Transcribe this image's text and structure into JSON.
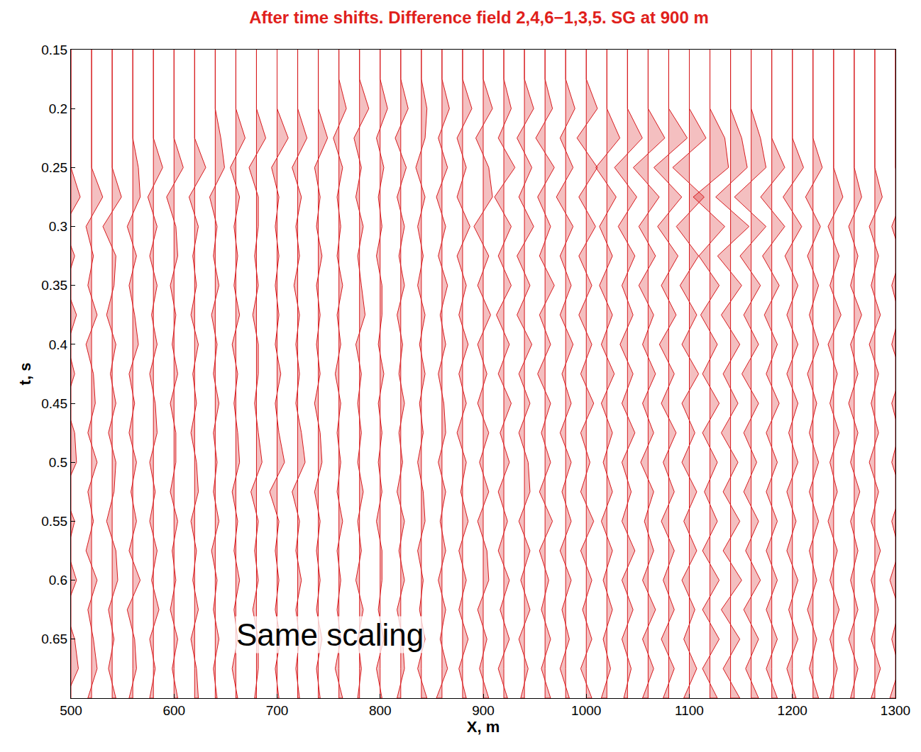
{
  "chart_data": {
    "type": "wiggle",
    "title": "After time shifts. Difference field 2,4,6−1,3,5. SG at 900 m",
    "x_label": "X, m",
    "y_label": "t, s",
    "color": "#d7191c",
    "grid": false,
    "xlim": [
      500,
      1300
    ],
    "xticks": [
      500,
      600,
      700,
      800,
      900,
      1000,
      1100,
      1200,
      1300
    ],
    "ylim": [
      0.7,
      0.15
    ],
    "yticks": [
      0.15,
      0.2,
      0.25,
      0.3,
      0.35,
      0.4,
      0.45,
      0.5,
      0.55,
      0.6,
      0.65
    ],
    "annotations": [
      {
        "text": "Same scaling",
        "x": 751,
        "y": 0.646
      }
    ],
    "t": [
      0.15,
      0.175,
      0.2,
      0.225,
      0.25,
      0.275,
      0.3,
      0.325,
      0.35,
      0.375,
      0.4,
      0.425,
      0.45,
      0.475,
      0.5,
      0.525,
      0.55,
      0.575,
      0.6,
      0.625,
      0.65,
      0.675,
      0.7
    ],
    "x": [
      500,
      520,
      540,
      560,
      580,
      600,
      620,
      640,
      660,
      680,
      700,
      720,
      740,
      760,
      780,
      800,
      820,
      840,
      860,
      880,
      900,
      920,
      940,
      960,
      980,
      1000,
      1020,
      1040,
      1060,
      1080,
      1100,
      1120,
      1140,
      1160,
      1180,
      1200,
      1220,
      1240,
      1260,
      1280,
      1300
    ],
    "traces": [
      [
        0,
        0,
        0,
        0,
        0,
        0.5,
        -0.4,
        0.2,
        -0.3,
        0.3,
        -0.2,
        0.2,
        -0.3,
        0.2,
        0.3,
        -0.4,
        0.2,
        -0.2,
        0.3,
        -0.3,
        0.2,
        0.4,
        -0.3
      ],
      [
        0,
        0,
        0,
        0,
        0,
        0.6,
        -0.3,
        0.1,
        -0.2,
        0.3,
        -0.3,
        0.1,
        0.2,
        -0.2,
        0.3,
        -0.2,
        0.1,
        -0.3,
        0.3,
        -0.2,
        0.1,
        0.3,
        -0.2
      ],
      [
        0,
        0,
        0,
        0,
        0,
        0.5,
        -0.5,
        0.2,
        0.1,
        -0.3,
        0.2,
        -0.1,
        0.2,
        -0.2,
        0.2,
        0.1,
        -0.3,
        0.2,
        0.3,
        -0.2,
        0.1,
        -0.2,
        0.2
      ],
      [
        0,
        0,
        0,
        0,
        0.3,
        0.4,
        -0.3,
        0.2,
        -0.2,
        0.1,
        0.3,
        -0.2,
        0.1,
        -0.2,
        0.2,
        -0.1,
        0.2,
        -0.2,
        0.4,
        -0.3,
        0.1,
        0.2,
        -0.2
      ],
      [
        0,
        0,
        0,
        0,
        0.5,
        -0.3,
        0.2,
        -0.2,
        0.2,
        -0.1,
        0.2,
        -0.2,
        0.1,
        0.2,
        -0.2,
        0.1,
        -0.2,
        0.2,
        -0.1,
        0.3,
        -0.2,
        0.1,
        -0.2
      ],
      [
        0,
        0,
        0,
        0,
        0.5,
        -0.4,
        0.1,
        0.2,
        -0.2,
        0.1,
        -0.1,
        0.2,
        -0.2,
        0.1,
        0.1,
        -0.2,
        0.2,
        -0.1,
        0.1,
        -0.2,
        0.2,
        -0.1,
        0.2
      ],
      [
        0,
        0,
        0,
        0,
        0.6,
        -0.3,
        0.2,
        -0.1,
        0.1,
        -0.2,
        0.2,
        -0.1,
        0.1,
        -0.2,
        0.1,
        0.2,
        -0.2,
        0.1,
        -0.1,
        0.2,
        -0.2,
        0.1,
        0.2
      ],
      [
        0,
        0,
        0,
        0.3,
        0.5,
        -0.3,
        0.1,
        -0.1,
        0.2,
        -0.2,
        0.1,
        -0.1,
        0.2,
        -0.1,
        0.1,
        -0.1,
        0.2,
        -0.2,
        0.1,
        -0.1,
        0.2,
        -0.1,
        0.1
      ],
      [
        0,
        0,
        0,
        0.5,
        -0.3,
        0.2,
        -0.1,
        0.1,
        -0.1,
        0.2,
        -0.2,
        0.1,
        -0.1,
        0.1,
        0.2,
        -0.2,
        0.1,
        -0.1,
        0.2,
        -0.1,
        0.1,
        -0.2,
        0.1
      ],
      [
        0,
        0,
        0,
        0.5,
        -0.4,
        0.1,
        0.1,
        -0.1,
        0.1,
        -0.2,
        0.1,
        0.1,
        -0.1,
        0.1,
        0.3,
        -0.3,
        0.1,
        -0.1,
        0.1,
        -0.2,
        0.1,
        0.1,
        -0.1
      ],
      [
        0,
        0,
        0,
        0.6,
        -0.3,
        0.1,
        -0.1,
        0.1,
        -0.1,
        0.1,
        -0.1,
        0.2,
        -0.1,
        0.1,
        0.4,
        -0.4,
        0.1,
        -0.1,
        0.1,
        -0.1,
        0.2,
        -0.1,
        0.1
      ],
      [
        0,
        0,
        0,
        0.5,
        -0.3,
        0.2,
        -0.1,
        0.1,
        -0.2,
        0.1,
        -0.1,
        0.1,
        -0.1,
        0.2,
        0.4,
        -0.3,
        0.1,
        -0.1,
        0.2,
        -0.1,
        0.1,
        -0.1,
        0.1
      ],
      [
        0,
        0,
        0,
        0.5,
        -0.2,
        0.1,
        -0.1,
        0.2,
        -0.1,
        0.1,
        -0.1,
        0.1,
        -0.2,
        0.1,
        0.2,
        -0.2,
        0.1,
        -0.1,
        0.1,
        -0.1,
        0.2,
        -0.1,
        0.1
      ],
      [
        0,
        0,
        0.4,
        -0.3,
        0.2,
        -0.1,
        0.1,
        -0.1,
        0.2,
        -0.1,
        0.1,
        -0.2,
        0.1,
        -0.1,
        0.1,
        -0.1,
        0.2,
        -0.1,
        0.1,
        -0.1,
        0.1,
        -0.2,
        0.2
      ],
      [
        0,
        0,
        0.5,
        -0.3,
        0.1,
        -0.2,
        0.2,
        -0.1,
        0.1,
        0.3,
        -0.2,
        0.1,
        -0.1,
        0.1,
        -0.1,
        0.2,
        -0.1,
        0.1,
        -0.2,
        0.2,
        -0.1,
        0.1,
        -0.1
      ],
      [
        0,
        0,
        0.4,
        -0.2,
        0.2,
        -0.1,
        0.1,
        -0.2,
        0.1,
        0.1,
        -0.1,
        0.2,
        -0.1,
        0.1,
        -0.1,
        0.1,
        -0.2,
        0.1,
        0.1,
        -0.1,
        0.2,
        -0.2,
        0.1
      ],
      [
        0,
        0,
        0.4,
        -0.3,
        0.3,
        -0.2,
        0.2,
        -0.1,
        0.2,
        -0.2,
        0.1,
        -0.1,
        0.2,
        -0.1,
        0.1,
        -0.2,
        0.2,
        -0.1,
        0.2,
        -0.2,
        0.1,
        0.2,
        -0.2
      ],
      [
        0,
        0,
        0.3,
        0.2,
        -0.3,
        0.2,
        -0.2,
        0.1,
        -0.2,
        0.2,
        -0.1,
        0.2,
        -0.1,
        0.1,
        -0.2,
        0.1,
        0.2,
        -0.2,
        0.1,
        -0.1,
        0.2,
        -0.2,
        0.3
      ],
      [
        0,
        0,
        0.4,
        -0.2,
        0.3,
        -0.3,
        0.2,
        -0.2,
        0.3,
        -0.1,
        0.2,
        -0.2,
        0.1,
        0.2,
        -0.2,
        0.2,
        -0.1,
        0.2,
        -0.2,
        0.2,
        -0.1,
        0.3,
        -0.3
      ],
      [
        0,
        0,
        0.5,
        -0.3,
        0.2,
        -0.3,
        0.4,
        -0.3,
        0.2,
        -0.2,
        0.3,
        -0.2,
        0.2,
        -0.3,
        0.2,
        -0.1,
        0.3,
        -0.2,
        0.2,
        -0.2,
        0.3,
        -0.2,
        0.2
      ],
      [
        0,
        0,
        0.5,
        -0.4,
        0.3,
        0.5,
        -0.5,
        0.3,
        -0.3,
        0.4,
        -0.3,
        0.2,
        -0.3,
        0.3,
        -0.2,
        0.3,
        -0.3,
        0.2,
        0.3,
        -0.3,
        0.2,
        -0.2,
        0.3
      ],
      [
        0,
        0,
        0.4,
        -0.3,
        0.6,
        -0.5,
        0.4,
        -0.3,
        0.4,
        -0.4,
        0.3,
        -0.3,
        0.4,
        -0.2,
        0.3,
        -0.3,
        0.2,
        -0.3,
        0.3,
        -0.2,
        0.3,
        -0.3,
        0.2
      ],
      [
        0,
        0,
        0.5,
        -0.4,
        0.4,
        -0.3,
        0.5,
        -0.4,
        0.3,
        -0.4,
        0.4,
        -0.3,
        0.3,
        -0.3,
        0.2,
        0.3,
        -0.3,
        0.3,
        -0.2,
        0.3,
        -0.3,
        0.2,
        -0.2
      ],
      [
        0,
        0,
        0.4,
        -0.5,
        0.5,
        -0.4,
        0.3,
        -0.3,
        0.5,
        -0.3,
        0.3,
        -0.4,
        0.3,
        -0.2,
        0.3,
        -0.3,
        0.4,
        -0.3,
        0.2,
        -0.2,
        0.3,
        -0.2,
        0.3
      ],
      [
        0,
        0,
        0.5,
        -0.3,
        0.4,
        -0.5,
        0.4,
        -0.3,
        0.3,
        -0.3,
        0.4,
        -0.2,
        0.3,
        -0.3,
        0.3,
        -0.2,
        0.3,
        -0.3,
        0.3,
        -0.2,
        0.2,
        -0.3,
        0.2
      ],
      [
        0,
        0,
        0.6,
        -0.5,
        0.6,
        -0.4,
        0.5,
        -0.4,
        0.3,
        -0.4,
        0.3,
        -0.3,
        0.4,
        -0.3,
        0.2,
        -0.3,
        0.4,
        -0.3,
        0.3,
        -0.2,
        0.3,
        -0.3,
        0.3
      ],
      [
        0,
        0,
        0,
        0.7,
        -0.6,
        0.5,
        -0.4,
        0.3,
        -0.4,
        0.3,
        -0.3,
        0.4,
        -0.3,
        0.3,
        -0.2,
        0.3,
        -0.3,
        0.3,
        -0.2,
        0.3,
        -0.2,
        0.2,
        -0.3
      ],
      [
        0,
        0,
        0,
        0.8,
        -0.7,
        0.5,
        -0.5,
        0.4,
        -0.3,
        0.3,
        -0.4,
        0.3,
        -0.3,
        0.4,
        -0.3,
        0.2,
        -0.3,
        0.4,
        -0.3,
        0.3,
        -0.3,
        0.2,
        -0.2
      ],
      [
        0,
        0,
        0,
        0.9,
        -0.8,
        0.6,
        -0.5,
        0.4,
        -0.5,
        0.3,
        -0.3,
        0.4,
        -0.3,
        0.3,
        -0.4,
        0.3,
        -0.2,
        0.3,
        -0.3,
        0.4,
        -0.3,
        0.3,
        -0.3
      ],
      [
        0,
        0,
        0,
        1.0,
        -0.8,
        0.7,
        -0.6,
        0.5,
        -0.4,
        0.4,
        -0.5,
        0.3,
        -0.4,
        0.4,
        -0.3,
        0.3,
        -0.4,
        0.3,
        -0.3,
        0.3,
        -0.4,
        0.3,
        -0.3
      ],
      [
        0,
        0,
        0,
        0.9,
        -0.9,
        0.8,
        -0.7,
        0.5,
        -0.5,
        0.4,
        -0.4,
        0.5,
        -0.4,
        0.3,
        -0.4,
        0.4,
        -0.3,
        0.4,
        -0.4,
        0.3,
        -0.3,
        0.4,
        -0.3
      ],
      [
        0,
        0,
        0,
        0.8,
        1.0,
        -0.9,
        0.8,
        -0.6,
        0.5,
        -0.5,
        0.4,
        -0.4,
        0.5,
        -0.4,
        0.4,
        -0.3,
        0.4,
        -0.4,
        0.5,
        -0.4,
        0.5,
        -0.4,
        0.4
      ],
      [
        0,
        0,
        0,
        0.6,
        0.9,
        -0.8,
        1.0,
        -0.7,
        0.6,
        -0.5,
        0.5,
        -0.4,
        0.4,
        -0.5,
        0.4,
        -0.4,
        0.5,
        -0.4,
        0.6,
        -0.5,
        0.5,
        -0.4,
        0.5
      ],
      [
        0,
        0,
        0,
        0.5,
        0.8,
        -0.9,
        0.8,
        -0.6,
        0.5,
        -0.4,
        0.4,
        -0.5,
        0.4,
        -0.4,
        0.3,
        -0.4,
        0.4,
        -0.3,
        0.5,
        -0.4,
        0.4,
        -0.3,
        0.4
      ],
      [
        0,
        0,
        0,
        0,
        0.7,
        -0.6,
        0.7,
        -0.5,
        0.4,
        -0.4,
        0.3,
        -0.3,
        0.4,
        -0.3,
        0.3,
        -0.3,
        0.3,
        -0.3,
        0.3,
        -0.3,
        0.3,
        -0.3,
        0.3
      ],
      [
        0,
        0,
        0,
        0,
        0.6,
        -0.5,
        0.5,
        -0.4,
        0.3,
        -0.3,
        0.3,
        -0.3,
        0.3,
        -0.2,
        0.3,
        -0.3,
        0.2,
        -0.3,
        0.3,
        -0.2,
        0.3,
        -0.3,
        0.2
      ],
      [
        0,
        0,
        0,
        0,
        0.5,
        -0.4,
        0.4,
        -0.3,
        0.3,
        -0.2,
        0.3,
        -0.3,
        0.2,
        -0.2,
        0.3,
        -0.2,
        0.3,
        -0.2,
        0.2,
        -0.3,
        0.2,
        -0.2,
        0.3
      ],
      [
        0,
        0,
        0,
        0,
        0,
        0.5,
        -0.3,
        0.3,
        -0.2,
        0.4,
        -0.3,
        0.2,
        -0.2,
        0.3,
        -0.2,
        0.2,
        -0.3,
        0.2,
        -0.2,
        0.3,
        -0.2,
        0.2,
        -0.2
      ],
      [
        0,
        0,
        0,
        0,
        0,
        0.4,
        -0.3,
        0.2,
        -0.2,
        0.4,
        -0.2,
        0.2,
        -0.3,
        0.2,
        -0.2,
        0.3,
        -0.2,
        0.2,
        -0.2,
        0.2,
        -0.3,
        0.2,
        -0.2
      ],
      [
        0,
        0,
        0,
        0,
        0,
        0.4,
        -0.3,
        0.2,
        -0.2,
        0.3,
        -0.3,
        0.2,
        -0.2,
        0.2,
        -0.3,
        0.2,
        -0.2,
        0.3,
        -0.2,
        0.2,
        -0.2,
        0.3,
        -0.2
      ],
      [
        0,
        0,
        0,
        0,
        0,
        0.4,
        -0.2,
        0.3,
        -0.2,
        0.2,
        -0.2,
        0.3,
        -0.2,
        0.2,
        -0.2,
        0.3,
        -0.2,
        0.2,
        -0.3,
        0.2,
        -0.2,
        0.2,
        -0.3
      ]
    ]
  }
}
